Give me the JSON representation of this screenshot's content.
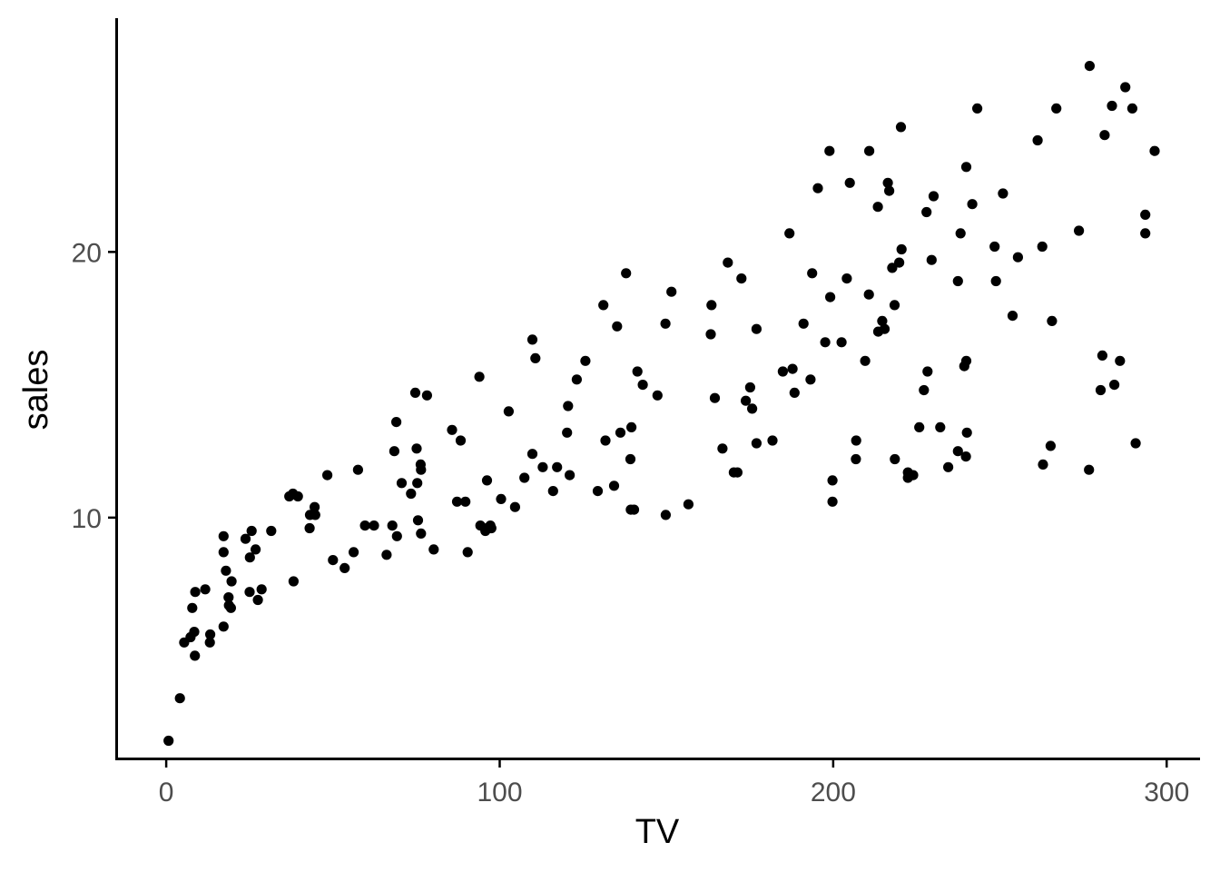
{
  "chart_data": {
    "type": "scatter",
    "xlabel": "TV",
    "ylabel": "sales",
    "xlim": [
      -15,
      310
    ],
    "ylim": [
      0.9,
      28.8
    ],
    "x_ticks": [
      0,
      100,
      200,
      300
    ],
    "y_ticks": [
      10,
      20
    ],
    "x_tick_labels": [
      "0",
      "100",
      "200",
      "300"
    ],
    "y_tick_labels": [
      "10",
      "20"
    ],
    "grid": false,
    "legend": "none",
    "point_color": "#000000",
    "series": [
      {
        "points": [
          [
            0.7,
            1.6
          ],
          [
            4.1,
            3.2
          ],
          [
            5.4,
            5.3
          ],
          [
            7.3,
            5.5
          ],
          [
            7.8,
            6.6
          ],
          [
            8.4,
            5.7
          ],
          [
            8.6,
            4.8
          ],
          [
            8.7,
            7.2
          ],
          [
            11.7,
            7.3
          ],
          [
            13.1,
            5.3
          ],
          [
            13.2,
            5.6
          ],
          [
            17.2,
            5.9
          ],
          [
            17.2,
            9.3
          ],
          [
            17.2,
            8.7
          ],
          [
            17.9,
            8.0
          ],
          [
            18.7,
            7.0
          ],
          [
            18.8,
            6.7
          ],
          [
            19.4,
            6.6
          ],
          [
            19.6,
            7.6
          ],
          [
            23.8,
            9.2
          ],
          [
            25.0,
            7.2
          ],
          [
            25.1,
            8.5
          ],
          [
            25.6,
            9.5
          ],
          [
            26.8,
            8.8
          ],
          [
            27.5,
            6.9
          ],
          [
            28.6,
            7.3
          ],
          [
            31.5,
            9.5
          ],
          [
            36.9,
            10.8
          ],
          [
            38.0,
            10.9
          ],
          [
            38.2,
            7.6
          ],
          [
            39.5,
            10.8
          ],
          [
            43.0,
            9.6
          ],
          [
            43.1,
            10.1
          ],
          [
            44.5,
            10.4
          ],
          [
            44.7,
            10.1
          ],
          [
            48.3,
            11.6
          ],
          [
            50.0,
            8.4
          ],
          [
            53.5,
            8.1
          ],
          [
            56.2,
            8.7
          ],
          [
            57.5,
            11.8
          ],
          [
            59.6,
            9.7
          ],
          [
            62.3,
            9.7
          ],
          [
            66.1,
            8.6
          ],
          [
            67.8,
            9.7
          ],
          [
            68.4,
            12.5
          ],
          [
            69.0,
            13.6
          ],
          [
            69.2,
            9.3
          ],
          [
            70.6,
            11.3
          ],
          [
            73.4,
            10.9
          ],
          [
            74.7,
            14.7
          ],
          [
            75.1,
            12.6
          ],
          [
            75.3,
            11.3
          ],
          [
            75.5,
            9.9
          ],
          [
            76.3,
            12.0
          ],
          [
            76.4,
            11.8
          ],
          [
            76.4,
            9.4
          ],
          [
            78.2,
            14.6
          ],
          [
            80.2,
            8.8
          ],
          [
            85.7,
            13.3
          ],
          [
            87.2,
            10.6
          ],
          [
            88.3,
            12.9
          ],
          [
            89.7,
            10.6
          ],
          [
            90.4,
            8.7
          ],
          [
            93.9,
            15.3
          ],
          [
            94.2,
            9.7
          ],
          [
            95.7,
            9.5
          ],
          [
            96.2,
            11.4
          ],
          [
            96.2,
            9.6
          ],
          [
            97.2,
            9.7
          ],
          [
            97.5,
            9.6
          ],
          [
            100.4,
            10.7
          ],
          [
            102.7,
            14.0
          ],
          [
            104.6,
            10.4
          ],
          [
            107.4,
            11.5
          ],
          [
            109.8,
            16.7
          ],
          [
            109.8,
            12.4
          ],
          [
            110.7,
            16.0
          ],
          [
            112.9,
            11.9
          ],
          [
            116.0,
            11.0
          ],
          [
            117.2,
            11.9
          ],
          [
            120.2,
            13.2
          ],
          [
            120.5,
            14.2
          ],
          [
            121.0,
            11.6
          ],
          [
            123.1,
            15.2
          ],
          [
            125.7,
            15.9
          ],
          [
            129.4,
            11.0
          ],
          [
            131.1,
            18.0
          ],
          [
            131.7,
            12.9
          ],
          [
            134.3,
            11.2
          ],
          [
            135.2,
            17.2
          ],
          [
            136.2,
            13.2
          ],
          [
            137.9,
            19.2
          ],
          [
            139.2,
            12.2
          ],
          [
            139.3,
            10.3
          ],
          [
            139.5,
            13.4
          ],
          [
            140.3,
            10.3
          ],
          [
            141.3,
            15.5
          ],
          [
            142.9,
            15.0
          ],
          [
            147.3,
            14.6
          ],
          [
            149.7,
            17.3
          ],
          [
            149.8,
            10.1
          ],
          [
            151.5,
            18.5
          ],
          [
            156.6,
            10.5
          ],
          [
            163.3,
            16.9
          ],
          [
            163.5,
            18.0
          ],
          [
            164.5,
            14.5
          ],
          [
            166.8,
            12.6
          ],
          [
            168.4,
            19.6
          ],
          [
            170.2,
            11.7
          ],
          [
            171.3,
            11.7
          ],
          [
            172.5,
            19.0
          ],
          [
            173.8,
            14.4
          ],
          [
            175.1,
            14.9
          ],
          [
            175.7,
            14.1
          ],
          [
            177.0,
            17.1
          ],
          [
            177.0,
            12.8
          ],
          [
            181.8,
            12.9
          ],
          [
            184.9,
            15.5
          ],
          [
            186.9,
            20.7
          ],
          [
            187.8,
            15.6
          ],
          [
            188.4,
            14.7
          ],
          [
            191.1,
            17.3
          ],
          [
            193.2,
            15.2
          ],
          [
            193.7,
            19.2
          ],
          [
            195.4,
            22.4
          ],
          [
            197.6,
            16.6
          ],
          [
            198.9,
            23.8
          ],
          [
            199.1,
            18.3
          ],
          [
            199.8,
            11.4
          ],
          [
            199.8,
            10.6
          ],
          [
            202.5,
            16.6
          ],
          [
            204.1,
            19.0
          ],
          [
            205.0,
            22.6
          ],
          [
            206.8,
            12.2
          ],
          [
            206.9,
            12.9
          ],
          [
            209.6,
            15.9
          ],
          [
            210.7,
            18.4
          ],
          [
            210.8,
            23.8
          ],
          [
            213.4,
            21.7
          ],
          [
            213.5,
            17.0
          ],
          [
            214.7,
            17.4
          ],
          [
            215.4,
            17.1
          ],
          [
            216.4,
            22.6
          ],
          [
            216.8,
            22.3
          ],
          [
            217.7,
            19.4
          ],
          [
            218.4,
            18.0
          ],
          [
            218.5,
            12.2
          ],
          [
            219.8,
            19.6
          ],
          [
            220.3,
            24.7
          ],
          [
            220.5,
            20.1
          ],
          [
            222.4,
            11.7
          ],
          [
            222.4,
            11.5
          ],
          [
            224.0,
            11.6
          ],
          [
            225.8,
            13.4
          ],
          [
            227.2,
            14.8
          ],
          [
            228.0,
            21.5
          ],
          [
            228.3,
            15.5
          ],
          [
            229.5,
            19.7
          ],
          [
            230.1,
            22.1
          ],
          [
            232.1,
            13.4
          ],
          [
            234.5,
            11.9
          ],
          [
            237.4,
            18.9
          ],
          [
            237.4,
            12.5
          ],
          [
            238.2,
            20.7
          ],
          [
            239.3,
            15.7
          ],
          [
            239.8,
            12.3
          ],
          [
            239.9,
            15.9
          ],
          [
            239.9,
            23.2
          ],
          [
            240.1,
            13.2
          ],
          [
            241.7,
            21.8
          ],
          [
            243.2,
            25.4
          ],
          [
            248.4,
            20.2
          ],
          [
            248.8,
            18.9
          ],
          [
            250.9,
            22.2
          ],
          [
            253.8,
            17.6
          ],
          [
            255.4,
            19.8
          ],
          [
            261.3,
            24.2
          ],
          [
            262.7,
            20.2
          ],
          [
            262.9,
            12.0
          ],
          [
            265.2,
            12.7
          ],
          [
            265.6,
            17.4
          ],
          [
            266.9,
            25.4
          ],
          [
            273.7,
            20.8
          ],
          [
            276.7,
            11.8
          ],
          [
            276.9,
            27.0
          ],
          [
            280.2,
            14.8
          ],
          [
            280.7,
            16.1
          ],
          [
            281.4,
            24.4
          ],
          [
            283.6,
            25.5
          ],
          [
            284.3,
            15.0
          ],
          [
            286.0,
            15.9
          ],
          [
            287.6,
            26.2
          ],
          [
            289.7,
            25.4
          ],
          [
            290.7,
            12.8
          ],
          [
            293.6,
            21.4
          ],
          [
            293.6,
            20.7
          ],
          [
            296.4,
            23.8
          ]
        ]
      }
    ]
  }
}
